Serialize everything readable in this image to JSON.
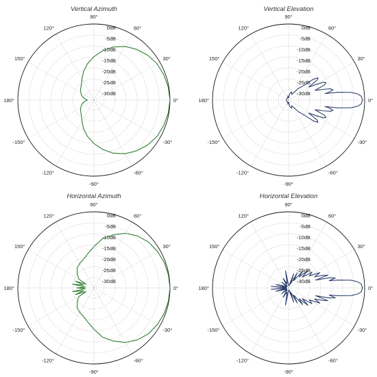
{
  "chart_data": [
    {
      "type": "polar",
      "title": "Vertical Azimuth",
      "angle_labels": [
        "90°",
        "60°",
        "30°",
        "0°",
        "-30°",
        "-60°",
        "-90°",
        "-120°",
        "-150°",
        "180°",
        "150°",
        "120°"
      ],
      "radial_labels": [
        "0dB",
        "-5dB",
        "-10dB",
        "-15dB",
        "-20dB",
        "-25dB",
        "-30dB"
      ],
      "rlim_db": [
        -35,
        0
      ],
      "color": "#2e7d32",
      "pattern": {
        "angle_deg": [
          0,
          10,
          20,
          30,
          40,
          50,
          60,
          70,
          80,
          90,
          100,
          110,
          120,
          130,
          140,
          150,
          160,
          170,
          180
        ],
        "gain_db": [
          0,
          -0.3,
          -0.8,
          -1.5,
          -2.8,
          -4.5,
          -6.5,
          -9,
          -12,
          -15,
          -18,
          -21,
          -24,
          -26,
          -27,
          -28,
          -29,
          -30.5,
          -32
        ]
      }
    },
    {
      "type": "polar",
      "title": "Vertical Elevation",
      "angle_labels": [
        "90°",
        "60°",
        "30°",
        "0°",
        "-30°",
        "-60°",
        "-90°",
        "-120°",
        "-150°",
        "180°",
        "150°",
        "120°"
      ],
      "radial_labels": [
        "0dB",
        "-5dB",
        "-10dB",
        "-15dB",
        "-20dB",
        "-25dB",
        "-30dB"
      ],
      "rlim_db": [
        -35,
        0
      ],
      "color": "#2c3e6b",
      "pattern": {
        "angle_deg": [
          0,
          3,
          5,
          7,
          9,
          10,
          11,
          13,
          15,
          17,
          20,
          23,
          25,
          27,
          30,
          33,
          35,
          37,
          40,
          45,
          50,
          60,
          70,
          80,
          90,
          100,
          110,
          120,
          130,
          140,
          150,
          160,
          170,
          180
        ],
        "gain_db": [
          -1,
          -1.5,
          -3,
          -6,
          -12,
          -18,
          -16,
          -14,
          -15,
          -18,
          -22,
          -17,
          -16,
          -17,
          -21,
          -24,
          -19,
          -18,
          -20,
          -26,
          -28,
          -32,
          -31,
          -32,
          -34,
          -33,
          -34,
          -34,
          -34,
          -34,
          -34,
          -34,
          -34,
          -34
        ]
      }
    },
    {
      "type": "polar",
      "title": "Horizontal Azimuth",
      "angle_labels": [
        "90°",
        "60°",
        "30°",
        "0°",
        "-30°",
        "-60°",
        "-90°",
        "-120°",
        "-150°",
        "180°",
        "150°",
        "120°"
      ],
      "radial_labels": [
        "0dB",
        "-5dB",
        "-10dB",
        "-15dB",
        "-20dB",
        "-25dB",
        "-30dB"
      ],
      "rlim_db": [
        -35,
        0
      ],
      "color": "#2e7d32",
      "pattern": {
        "angle_deg": [
          0,
          10,
          20,
          30,
          40,
          50,
          60,
          70,
          80,
          90,
          100,
          110,
          120,
          130,
          140,
          150,
          155,
          160,
          165,
          170,
          175,
          180
        ],
        "gain_db": [
          0,
          -0.2,
          -0.6,
          -1.3,
          -2.2,
          -3.8,
          -6,
          -9,
          -12,
          -16,
          -19,
          -21,
          -22,
          -23,
          -25,
          -27,
          -31,
          -26,
          -30,
          -25,
          -31,
          -27
        ]
      }
    },
    {
      "type": "polar",
      "title": "Horizontal Elevation",
      "angle_labels": [
        "90°",
        "60°",
        "30°",
        "0°",
        "-30°",
        "-60°",
        "-90°",
        "-120°",
        "-150°",
        "180°",
        "150°",
        "120°"
      ],
      "radial_labels": [
        "0dB",
        "-5dB",
        "-10dB",
        "-15dB",
        "-20dB",
        "-25dB",
        "-30dB"
      ],
      "rlim_db": [
        -35,
        0
      ],
      "color": "#2c3e6b",
      "pattern": {
        "angle_deg": [
          0,
          3,
          5,
          7,
          9,
          10,
          12,
          14,
          16,
          18,
          20,
          23,
          26,
          30,
          34,
          38,
          42,
          46,
          50,
          55,
          60,
          65,
          70,
          80,
          90,
          100,
          110,
          120,
          130,
          140,
          150,
          160,
          165,
          170,
          175,
          180
        ],
        "gain_db": [
          -1,
          -1.5,
          -3,
          -6,
          -12,
          -16,
          -13,
          -16,
          -22,
          -16,
          -18,
          -22,
          -19,
          -24,
          -22,
          -27,
          -23,
          -28,
          -25,
          -31,
          -27,
          -33,
          -28,
          -34,
          -34,
          -27,
          -33,
          -30,
          -34,
          -31,
          -34,
          -32,
          -29,
          -34,
          -27,
          -34
        ]
      }
    }
  ]
}
